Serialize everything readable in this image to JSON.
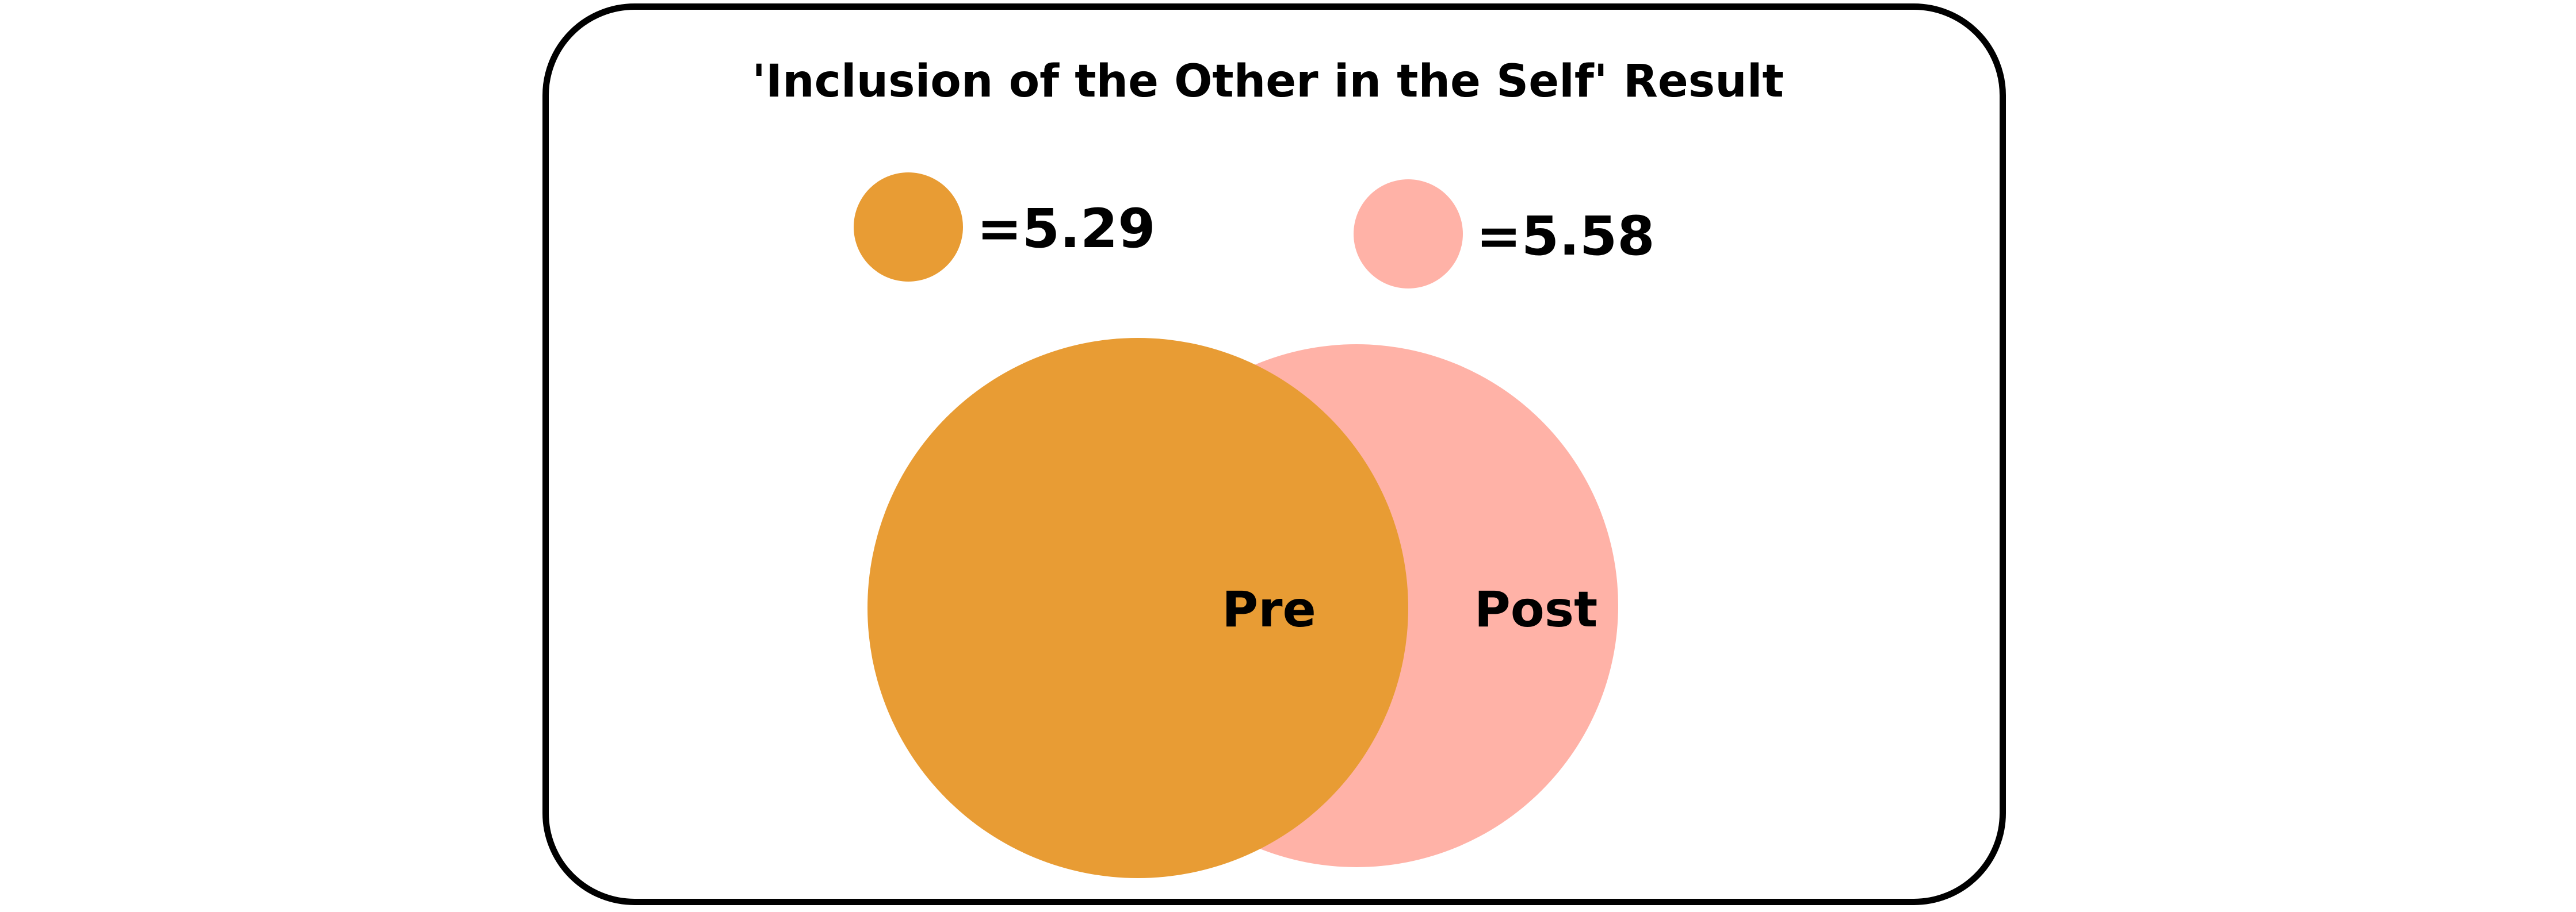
{
  "title": "'Inclusion of the Other in the Self' Result",
  "legend": [
    {
      "value_text": "=5.29",
      "color": "#E89C34"
    },
    {
      "value_text": "=5.58",
      "color": "#FFB2A7"
    }
  ],
  "circles": [
    {
      "label": "Pre",
      "color": "#E89C34"
    },
    {
      "label": "Post",
      "color": "#FFB2A7"
    }
  ],
  "frame_color": "#000000",
  "background": "#FFFFFF"
}
